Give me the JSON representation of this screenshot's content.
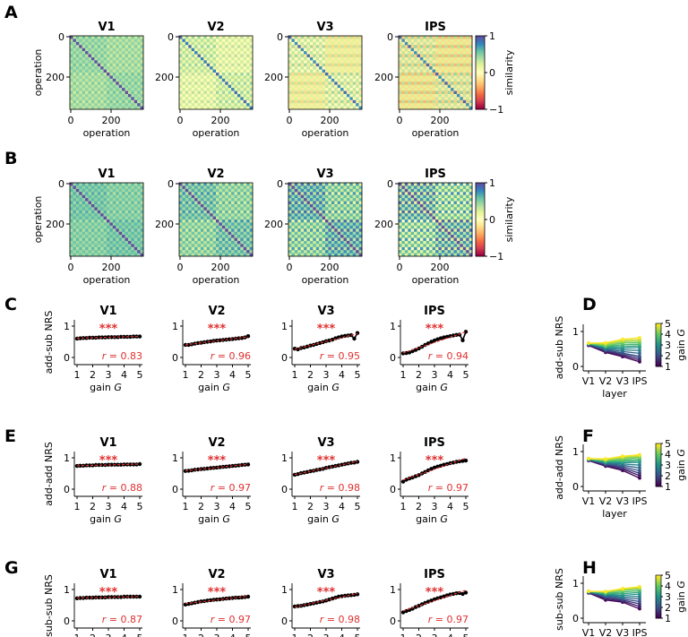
{
  "chart_data": [
    {
      "type": "heatmap",
      "panel_label": "A",
      "titles": [
        "V1",
        "V2",
        "V3",
        "IPS"
      ],
      "xlabel": "operation",
      "ylabel": "operation",
      "xticks": [
        "0",
        "200"
      ],
      "yticks": [
        "0",
        "200"
      ],
      "n_operations": 360,
      "colorbar": {
        "label": "similarity",
        "ticks": [
          "1",
          "0",
          "−1"
        ],
        "range": [
          -1,
          1
        ]
      },
      "approx_within_block_similarity": [
        0.45,
        0.25,
        0.15,
        0.1
      ],
      "approx_between_block_similarity": [
        0.4,
        0.15,
        0.05,
        0.0
      ]
    },
    {
      "type": "heatmap",
      "panel_label": "B",
      "titles": [
        "V1",
        "V2",
        "V3",
        "IPS"
      ],
      "xlabel": "operation",
      "ylabel": "operation",
      "xticks": [
        "0",
        "200"
      ],
      "yticks": [
        "0",
        "200"
      ],
      "n_operations": 360,
      "colorbar": {
        "label": "similarity",
        "ticks": [
          "1",
          "0",
          "−1"
        ],
        "range": [
          -1,
          1
        ]
      },
      "approx_within_block_similarity": [
        0.55,
        0.55,
        0.6,
        0.55
      ],
      "approx_between_block_similarity": [
        0.5,
        0.45,
        0.45,
        0.4
      ]
    },
    {
      "type": "line",
      "panel_label": "C",
      "ylabel": "add-sub NRS",
      "xlabel": "gain",
      "xlabel_italic": "G",
      "xticks": [
        "1",
        "2",
        "3",
        "4",
        "5"
      ],
      "yticks": [
        "0",
        "1"
      ],
      "ylim": [
        0,
        1
      ],
      "x": [
        1.0,
        1.2,
        1.4,
        1.6,
        1.8,
        2.0,
        2.2,
        2.4,
        2.6,
        2.8,
        3.0,
        3.2,
        3.4,
        3.6,
        3.8,
        4.0,
        4.2,
        4.4,
        4.6,
        4.8,
        5.0
      ],
      "series": [
        {
          "name": "V1",
          "stars": "***",
          "r_label": "r",
          "r_value": " = 0.83",
          "values": [
            0.6,
            0.61,
            0.62,
            0.62,
            0.63,
            0.63,
            0.63,
            0.64,
            0.64,
            0.64,
            0.65,
            0.65,
            0.65,
            0.65,
            0.66,
            0.66,
            0.66,
            0.66,
            0.67,
            0.67,
            0.67
          ]
        },
        {
          "name": "V2",
          "stars": "***",
          "r_label": "r",
          "r_value": " = 0.96",
          "values": [
            0.4,
            0.4,
            0.42,
            0.44,
            0.46,
            0.47,
            0.49,
            0.5,
            0.51,
            0.53,
            0.54,
            0.55,
            0.56,
            0.57,
            0.58,
            0.59,
            0.6,
            0.61,
            0.62,
            0.64,
            0.68
          ]
        },
        {
          "name": "V3",
          "stars": "***",
          "r_label": "r",
          "r_value": " = 0.95",
          "values": [
            0.28,
            0.26,
            0.3,
            0.32,
            0.35,
            0.38,
            0.4,
            0.43,
            0.46,
            0.49,
            0.52,
            0.54,
            0.57,
            0.61,
            0.64,
            0.67,
            0.69,
            0.7,
            0.71,
            0.6,
            0.78
          ]
        },
        {
          "name": "IPS",
          "stars": "***",
          "r_label": "r",
          "r_value": " = 0.94",
          "values": [
            0.13,
            0.14,
            0.16,
            0.2,
            0.24,
            0.29,
            0.34,
            0.4,
            0.45,
            0.5,
            0.54,
            0.58,
            0.61,
            0.64,
            0.66,
            0.68,
            0.7,
            0.72,
            0.73,
            0.55,
            0.82
          ]
        }
      ]
    },
    {
      "type": "line",
      "panel_label": "E",
      "ylabel": "add-add NRS",
      "xlabel": "gain",
      "xlabel_italic": "G",
      "xticks": [
        "1",
        "2",
        "3",
        "4",
        "5"
      ],
      "yticks": [
        "0",
        "1"
      ],
      "ylim": [
        0,
        1
      ],
      "x": [
        1.0,
        1.2,
        1.4,
        1.6,
        1.8,
        2.0,
        2.2,
        2.4,
        2.6,
        2.8,
        3.0,
        3.2,
        3.4,
        3.6,
        3.8,
        4.0,
        4.2,
        4.4,
        4.6,
        4.8,
        5.0
      ],
      "series": [
        {
          "name": "V1",
          "stars": "***",
          "r_label": "r",
          "r_value": " = 0.88",
          "values": [
            0.74,
            0.75,
            0.75,
            0.76,
            0.76,
            0.76,
            0.77,
            0.77,
            0.77,
            0.77,
            0.78,
            0.78,
            0.78,
            0.78,
            0.78,
            0.79,
            0.79,
            0.79,
            0.79,
            0.79,
            0.8
          ]
        },
        {
          "name": "V2",
          "stars": "***",
          "r_label": "r",
          "r_value": " = 0.97",
          "values": [
            0.58,
            0.59,
            0.6,
            0.62,
            0.63,
            0.64,
            0.65,
            0.66,
            0.67,
            0.68,
            0.69,
            0.7,
            0.71,
            0.72,
            0.73,
            0.74,
            0.75,
            0.76,
            0.77,
            0.78,
            0.79
          ]
        },
        {
          "name": "V3",
          "stars": "***",
          "r_label": "r",
          "r_value": " = 0.98",
          "values": [
            0.46,
            0.48,
            0.51,
            0.53,
            0.55,
            0.57,
            0.59,
            0.61,
            0.63,
            0.65,
            0.68,
            0.7,
            0.72,
            0.74,
            0.76,
            0.78,
            0.8,
            0.82,
            0.84,
            0.85,
            0.87
          ]
        },
        {
          "name": "IPS",
          "stars": "***",
          "r_label": "r",
          "r_value": " = 0.97",
          "values": [
            0.24,
            0.3,
            0.34,
            0.37,
            0.41,
            0.45,
            0.5,
            0.55,
            0.6,
            0.65,
            0.69,
            0.72,
            0.75,
            0.78,
            0.8,
            0.83,
            0.85,
            0.87,
            0.89,
            0.9,
            0.91
          ]
        }
      ]
    },
    {
      "type": "line",
      "panel_label": "G",
      "ylabel": "sub-sub NRS",
      "xlabel": "gain",
      "xlabel_italic": "G",
      "xticks": [
        "1",
        "2",
        "3",
        "4",
        "5"
      ],
      "yticks": [
        "0",
        "1"
      ],
      "ylim": [
        0,
        1
      ],
      "x": [
        1.0,
        1.2,
        1.4,
        1.6,
        1.8,
        2.0,
        2.2,
        2.4,
        2.6,
        2.8,
        3.0,
        3.2,
        3.4,
        3.6,
        3.8,
        4.0,
        4.2,
        4.4,
        4.6,
        4.8,
        5.0
      ],
      "series": [
        {
          "name": "V1",
          "stars": "***",
          "r_label": "r",
          "r_value": " = 0.87",
          "values": [
            0.72,
            0.73,
            0.73,
            0.74,
            0.74,
            0.74,
            0.75,
            0.75,
            0.75,
            0.75,
            0.76,
            0.76,
            0.76,
            0.76,
            0.76,
            0.77,
            0.77,
            0.77,
            0.77,
            0.77,
            0.77
          ]
        },
        {
          "name": "V2",
          "stars": "***",
          "r_label": "r",
          "r_value": " = 0.97",
          "values": [
            0.52,
            0.54,
            0.56,
            0.58,
            0.6,
            0.62,
            0.63,
            0.65,
            0.66,
            0.67,
            0.68,
            0.69,
            0.7,
            0.71,
            0.72,
            0.73,
            0.74,
            0.74,
            0.75,
            0.76,
            0.77
          ]
        },
        {
          "name": "V3",
          "stars": "***",
          "r_label": "r",
          "r_value": " = 0.98",
          "values": [
            0.46,
            0.47,
            0.48,
            0.5,
            0.52,
            0.54,
            0.56,
            0.58,
            0.6,
            0.62,
            0.65,
            0.68,
            0.71,
            0.74,
            0.77,
            0.79,
            0.8,
            0.81,
            0.82,
            0.83,
            0.85
          ]
        },
        {
          "name": "IPS",
          "stars": "***",
          "r_label": "r",
          "r_value": " = 0.97",
          "values": [
            0.27,
            0.31,
            0.35,
            0.39,
            0.44,
            0.48,
            0.53,
            0.57,
            0.61,
            0.65,
            0.69,
            0.72,
            0.75,
            0.78,
            0.81,
            0.84,
            0.86,
            0.88,
            0.89,
            0.86,
            0.9
          ]
        }
      ]
    },
    {
      "type": "line",
      "panel_label": "D",
      "ylabel": "add-sub NRS",
      "xlabel": "layer",
      "categories": [
        "V1",
        "V2",
        "V3",
        "IPS"
      ],
      "yticks": [
        "0",
        "1"
      ],
      "ylim": [
        0,
        1
      ],
      "colorbar": {
        "label": "gain",
        "label_italic": "G",
        "ticks": [
          "5",
          "4",
          "3",
          "2",
          "1"
        ]
      },
      "series": [
        {
          "name": "G=1",
          "values": [
            0.6,
            0.4,
            0.28,
            0.13
          ]
        },
        {
          "name": "G=2",
          "values": [
            0.63,
            0.47,
            0.38,
            0.29
          ]
        },
        {
          "name": "G=3",
          "values": [
            0.65,
            0.54,
            0.52,
            0.54
          ]
        },
        {
          "name": "G=4",
          "values": [
            0.66,
            0.59,
            0.67,
            0.68
          ]
        },
        {
          "name": "G=5",
          "values": [
            0.67,
            0.68,
            0.78,
            0.82
          ]
        }
      ]
    },
    {
      "type": "line",
      "panel_label": "F",
      "ylabel": "add-add NRS",
      "xlabel": "layer",
      "categories": [
        "V1",
        "V2",
        "V3",
        "IPS"
      ],
      "yticks": [
        "0",
        "1"
      ],
      "ylim": [
        0,
        1
      ],
      "colorbar": {
        "label": "gain",
        "label_italic": "G",
        "ticks": [
          "5",
          "4",
          "3",
          "2",
          "1"
        ]
      },
      "series": [
        {
          "name": "G=1",
          "values": [
            0.74,
            0.58,
            0.46,
            0.24
          ]
        },
        {
          "name": "G=2",
          "values": [
            0.76,
            0.64,
            0.57,
            0.45
          ]
        },
        {
          "name": "G=3",
          "values": [
            0.78,
            0.69,
            0.68,
            0.69
          ]
        },
        {
          "name": "G=4",
          "values": [
            0.79,
            0.74,
            0.78,
            0.83
          ]
        },
        {
          "name": "G=5",
          "values": [
            0.8,
            0.79,
            0.87,
            0.91
          ]
        }
      ]
    },
    {
      "type": "line",
      "panel_label": "H",
      "ylabel": "sub-sub NRS",
      "xlabel": "layer",
      "categories": [
        "V1",
        "V2",
        "V3",
        "IPS"
      ],
      "yticks": [
        "0",
        "1"
      ],
      "ylim": [
        0,
        1
      ],
      "colorbar": {
        "label": "gain",
        "label_italic": "G",
        "ticks": [
          "5",
          "4",
          "3",
          "2",
          "1"
        ]
      },
      "series": [
        {
          "name": "G=1",
          "values": [
            0.72,
            0.52,
            0.46,
            0.27
          ]
        },
        {
          "name": "G=2",
          "values": [
            0.74,
            0.62,
            0.54,
            0.48
          ]
        },
        {
          "name": "G=3",
          "values": [
            0.76,
            0.68,
            0.65,
            0.69
          ]
        },
        {
          "name": "G=4",
          "values": [
            0.77,
            0.73,
            0.79,
            0.84
          ]
        },
        {
          "name": "G=5",
          "values": [
            0.77,
            0.77,
            0.85,
            0.9
          ]
        }
      ]
    }
  ]
}
